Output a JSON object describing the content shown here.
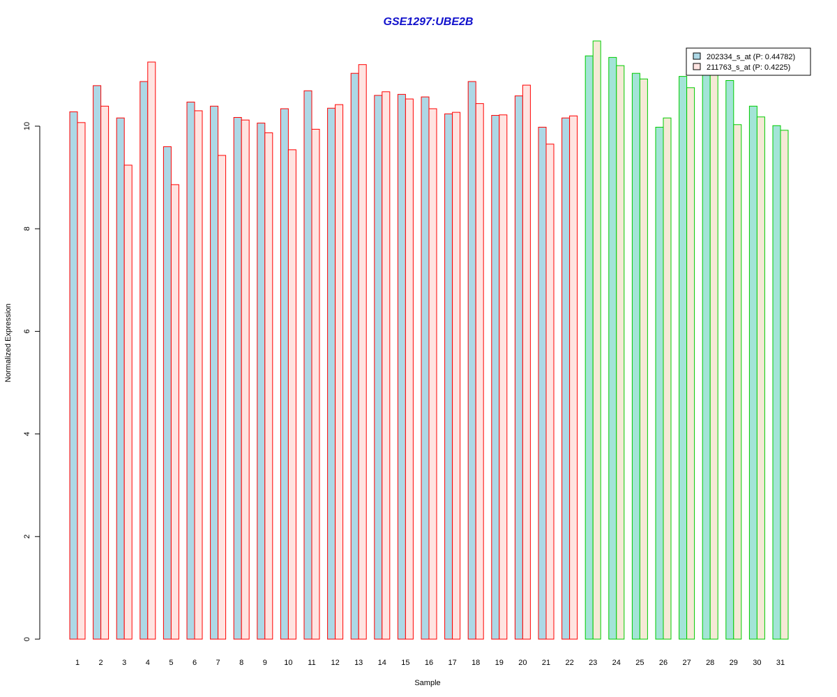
{
  "chart_data": {
    "type": "bar",
    "title": "GSE1297:UBE2B",
    "xlabel": "Sample",
    "ylabel": "Normalized Expression",
    "ylim": [
      0,
      11.6
    ],
    "yticks": [
      0,
      2,
      4,
      6,
      8,
      10
    ],
    "grid": false,
    "legend_position": "top-right",
    "categories": [
      "1",
      "2",
      "3",
      "4",
      "5",
      "6",
      "7",
      "8",
      "9",
      "10",
      "11",
      "12",
      "13",
      "14",
      "15",
      "16",
      "17",
      "18",
      "19",
      "20",
      "21",
      "22",
      "23",
      "24",
      "25",
      "26",
      "27",
      "28",
      "29",
      "30",
      "31"
    ],
    "group_split_after": 22,
    "series": [
      {
        "name": "202334_s_at (P: 0.44782)",
        "fill": "#add8e6",
        "values": [
          10.28,
          10.79,
          10.16,
          10.87,
          9.6,
          10.47,
          10.39,
          10.17,
          10.06,
          10.34,
          10.69,
          10.35,
          11.03,
          10.6,
          10.62,
          10.57,
          10.24,
          10.87,
          10.21,
          10.59,
          9.98,
          10.16,
          11.37,
          11.34,
          11.03,
          9.98,
          10.97,
          11.03,
          10.89,
          10.39,
          10.01
        ]
      },
      {
        "name": "211763_s_at (P: 0.4225)",
        "fill_group1": "#ffe4e1",
        "fill_group2": "#f5e9d6",
        "values": [
          10.07,
          10.39,
          9.24,
          11.25,
          8.86,
          10.3,
          9.43,
          10.12,
          9.87,
          9.54,
          9.94,
          10.42,
          11.2,
          10.67,
          10.53,
          10.34,
          10.27,
          10.44,
          10.22,
          10.8,
          9.65,
          10.2,
          11.66,
          11.18,
          10.92,
          10.16,
          10.75,
          11.03,
          10.03,
          10.18,
          9.92
        ]
      }
    ],
    "border_colors": {
      "group1": "#ff0000",
      "group2": "#00cc00"
    },
    "group2_series1_fill": "#a3e4d7"
  }
}
